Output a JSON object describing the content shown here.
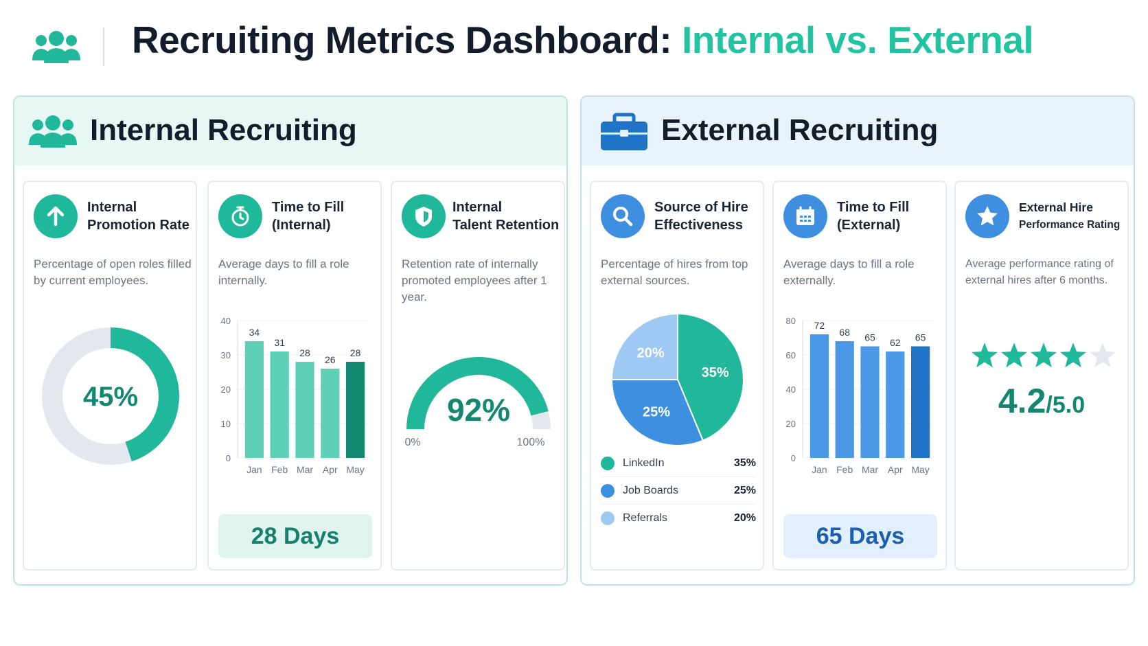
{
  "header": {
    "title_main": "Recruiting Metrics Dashboard: ",
    "title_accent": "Internal vs. External",
    "icon": "users-icon"
  },
  "internal": {
    "title": "Internal Recruiting",
    "icon": "users-icon",
    "promotion": {
      "title_line1": "Internal",
      "title_line2": "Promotion Rate",
      "icon": "arrow-up-icon",
      "description": "Percentage of open roles filled by current employees.",
      "value": 45,
      "value_label": "45%"
    },
    "time_to_fill": {
      "title_line1": "Time to Fill",
      "title_line2": "(Internal)",
      "icon": "stopwatch-icon",
      "description": "Average days to fill a role internally.",
      "stat": "28 Days"
    },
    "retention": {
      "title_line1": "Internal",
      "title_line2": "Talent Retention",
      "icon": "shield-icon",
      "description": "Retention rate of internally promoted employees after 1 year.",
      "value": 92,
      "value_label": "92%",
      "min_label": "0%",
      "max_label": "100%"
    }
  },
  "external": {
    "title": "External Recruiting",
    "icon": "briefcase-icon",
    "source": {
      "title_line1": "Source of Hire",
      "title_line2": "Effectiveness",
      "icon": "search-icon",
      "description": "Percentage of hires from top external sources.",
      "legend": [
        {
          "label": "LinkedIn",
          "value": "35%"
        },
        {
          "label": "Job Boards",
          "value": "25%"
        },
        {
          "label": "Referrals",
          "value": "20%"
        }
      ]
    },
    "time_to_fill": {
      "title_line1": "Time to Fill",
      "title_line2": "(External)",
      "icon": "calendar-icon",
      "description": "Average days to fill a role externally.",
      "stat": "65 Days"
    },
    "performance": {
      "title_line1": "External Hire",
      "title_line2": "Performance Rating",
      "icon": "star-icon",
      "description": "Average performance rating of external hires after 6 months.",
      "rating": 4.2,
      "rating_value": "4.2",
      "rating_max": "/5.0"
    }
  },
  "colors": {
    "teal": "#21b79a",
    "teal_dark": "#13876f",
    "teal_light": "#5fd0b8",
    "blue": "#3e8fe0",
    "blue_dark": "#1f74c8",
    "blue_light": "#9ec9f2",
    "grey_track": "#e3e8ee"
  },
  "chart_data": [
    {
      "type": "donut",
      "id": "internal-promotion-rate",
      "values": [
        45
      ],
      "max": 100,
      "center_label": "45%"
    },
    {
      "type": "bar",
      "id": "internal-time-to-fill",
      "categories": [
        "Jan",
        "Feb",
        "Mar",
        "Apr",
        "May"
      ],
      "values": [
        34,
        31,
        28,
        26,
        28
      ],
      "ylim": [
        0,
        40
      ],
      "yticks": [
        0,
        10,
        20,
        30,
        40
      ],
      "grid": true
    },
    {
      "type": "gauge",
      "id": "internal-talent-retention",
      "values": [
        92
      ],
      "min": 0,
      "max": 100,
      "center_label": "92%"
    },
    {
      "type": "pie",
      "id": "source-of-hire",
      "slices": [
        {
          "label": "LinkedIn",
          "value": 35,
          "display": "35%"
        },
        {
          "label": "Job Boards",
          "value": 25,
          "display": "25%"
        },
        {
          "label": "Referrals",
          "value": 20,
          "display": "20%"
        }
      ]
    },
    {
      "type": "bar",
      "id": "external-time-to-fill",
      "categories": [
        "Jan",
        "Feb",
        "Mar",
        "Apr",
        "May"
      ],
      "values": [
        72,
        68,
        65,
        62,
        65
      ],
      "ylim": [
        0,
        80
      ],
      "yticks": [
        0,
        20,
        40,
        60,
        80
      ],
      "grid": true
    }
  ]
}
